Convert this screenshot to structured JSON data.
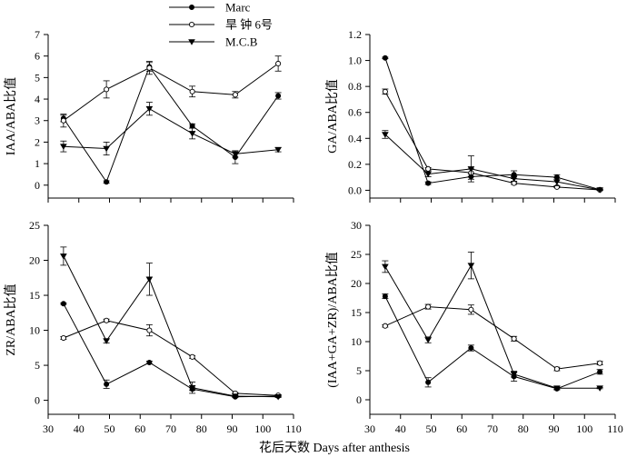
{
  "figure": {
    "xlabel": "花后天数  Days after anthesis",
    "legend": [
      {
        "label": "Marc",
        "marker": "filled-circle"
      },
      {
        "label": "旱 钟  6号",
        "marker": "open-circle"
      },
      {
        "label": "M.C.B",
        "marker": "filled-triangle-down"
      }
    ]
  },
  "chart_data": [
    {
      "type": "line",
      "title": "",
      "ylabel": "IAA/ABA比值",
      "xlabel": "",
      "x": [
        35,
        49,
        63,
        77,
        91,
        105
      ],
      "xlim": [
        30,
        110
      ],
      "xticks": [
        30,
        40,
        50,
        60,
        70,
        80,
        90,
        100,
        110
      ],
      "show_xticklabels": false,
      "ylim": [
        -0.6,
        7
      ],
      "yticks": [
        0,
        1,
        2,
        3,
        4,
        5,
        6,
        7
      ],
      "ytick_labels": [
        "0",
        "1",
        "2",
        "3",
        "4",
        "5",
        "6",
        "7"
      ],
      "series": [
        {
          "name": "Marc",
          "marker": "filled-circle",
          "values": [
            3.1,
            0.15,
            5.5,
            2.75,
            1.3,
            4.15
          ],
          "errors": [
            0.15,
            0.05,
            0.2,
            0.1,
            0.3,
            0.15
          ]
        },
        {
          "name": "旱 钟  6号",
          "marker": "open-circle",
          "values": [
            3.0,
            4.45,
            5.45,
            4.35,
            4.2,
            5.65
          ],
          "errors": [
            0.3,
            0.4,
            0.3,
            0.25,
            0.15,
            0.35
          ]
        },
        {
          "name": "M.C.B",
          "marker": "filled-triangle-down",
          "values": [
            1.8,
            1.7,
            3.55,
            2.4,
            1.45,
            1.65
          ],
          "errors": [
            0.25,
            0.3,
            0.3,
            0.25,
            0.15,
            0.1
          ]
        }
      ]
    },
    {
      "type": "line",
      "title": "",
      "ylabel": "GA/ABA比值",
      "xlabel": "",
      "x": [
        35,
        49,
        63,
        77,
        91,
        105
      ],
      "xlim": [
        30,
        110
      ],
      "xticks": [
        30,
        40,
        50,
        60,
        70,
        80,
        90,
        100,
        110
      ],
      "show_xticklabels": false,
      "ylim": [
        -0.06,
        1.2
      ],
      "yticks": [
        0,
        0.2,
        0.4,
        0.6,
        0.8,
        1.0,
        1.2
      ],
      "ytick_labels": [
        "0.0",
        "0.2",
        "0.4",
        "0.6",
        "0.8",
        "1.0",
        "1.2"
      ],
      "series": [
        {
          "name": "Marc",
          "marker": "filled-circle",
          "values": [
            1.02,
            0.055,
            0.105,
            0.12,
            0.1,
            0.005
          ],
          "errors": [
            0.005,
            0.01,
            0.02,
            0.03,
            0.02,
            0.005
          ]
        },
        {
          "name": "旱 钟  6号",
          "marker": "open-circle",
          "values": [
            0.76,
            0.165,
            0.135,
            0.055,
            0.025,
            0.003
          ],
          "errors": [
            0.02,
            0.01,
            0.03,
            0.01,
            0.005,
            0.003
          ]
        },
        {
          "name": "M.C.B",
          "marker": "filled-triangle-down",
          "values": [
            0.43,
            0.125,
            0.165,
            0.09,
            0.065,
            0.003
          ],
          "errors": [
            0.03,
            0.02,
            0.1,
            0.02,
            0.03,
            0.003
          ]
        }
      ]
    },
    {
      "type": "line",
      "title": "",
      "ylabel": "ZR/ABA比值",
      "xlabel": "",
      "x": [
        35,
        49,
        63,
        77,
        91,
        105
      ],
      "xlim": [
        30,
        110
      ],
      "xticks": [
        30,
        40,
        50,
        60,
        70,
        80,
        90,
        100,
        110
      ],
      "xtick_labels": [
        "30",
        "40",
        "50",
        "60",
        "70",
        "80",
        "90",
        "100",
        "110"
      ],
      "show_xticklabels": true,
      "ylim": [
        -2,
        25
      ],
      "yticks": [
        0,
        5,
        10,
        15,
        20,
        25
      ],
      "ytick_labels": [
        "0",
        "5",
        "10",
        "15",
        "20",
        "25"
      ],
      "series": [
        {
          "name": "Marc",
          "marker": "filled-circle",
          "values": [
            13.8,
            2.3,
            5.4,
            1.6,
            0.5,
            0.6
          ],
          "errors": [
            0.1,
            0.6,
            0.2,
            0.2,
            0.1,
            0.1
          ]
        },
        {
          "name": "旱 钟  6号",
          "marker": "open-circle",
          "values": [
            8.9,
            11.4,
            10.0,
            6.2,
            1.0,
            0.7
          ],
          "errors": [
            0.2,
            0.2,
            0.8,
            0.2,
            0.1,
            0.1
          ]
        },
        {
          "name": "M.C.B",
          "marker": "filled-triangle-down",
          "values": [
            20.6,
            8.5,
            17.3,
            1.8,
            0.6,
            0.5
          ],
          "errors": [
            1.3,
            0.3,
            2.3,
            0.8,
            0.1,
            0.1
          ]
        }
      ]
    },
    {
      "type": "line",
      "title": "",
      "ylabel": "(IAA+GA+ZR)/ABA比值",
      "xlabel": "",
      "x": [
        35,
        49,
        63,
        77,
        91,
        105
      ],
      "xlim": [
        30,
        110
      ],
      "xticks": [
        30,
        40,
        50,
        60,
        70,
        80,
        90,
        100,
        110
      ],
      "xtick_labels": [
        "30",
        "40",
        "50",
        "60",
        "70",
        "80",
        "90",
        "100",
        "110"
      ],
      "show_xticklabels": true,
      "ylim": [
        -2.5,
        30
      ],
      "yticks": [
        0,
        5,
        10,
        15,
        20,
        25,
        30
      ],
      "ytick_labels": [
        "0",
        "5",
        "10",
        "15",
        "20",
        "25",
        "30"
      ],
      "series": [
        {
          "name": "Marc",
          "marker": "filled-circle",
          "values": [
            17.8,
            3.0,
            8.9,
            4.0,
            1.9,
            4.8
          ],
          "errors": [
            0.4,
            0.8,
            0.5,
            0.8,
            0.2,
            0.4
          ]
        },
        {
          "name": "旱 钟  6号",
          "marker": "open-circle",
          "values": [
            12.7,
            16.0,
            15.5,
            10.5,
            5.3,
            6.3
          ],
          "errors": [
            0.2,
            0.4,
            0.8,
            0.4,
            0.3,
            0.3
          ]
        },
        {
          "name": "M.C.B",
          "marker": "filled-triangle-down",
          "values": [
            22.9,
            10.3,
            23.1,
            4.4,
            2.0,
            2.0
          ],
          "errors": [
            1.0,
            0.5,
            2.3,
            0.5,
            0.2,
            0.1
          ]
        }
      ]
    }
  ]
}
